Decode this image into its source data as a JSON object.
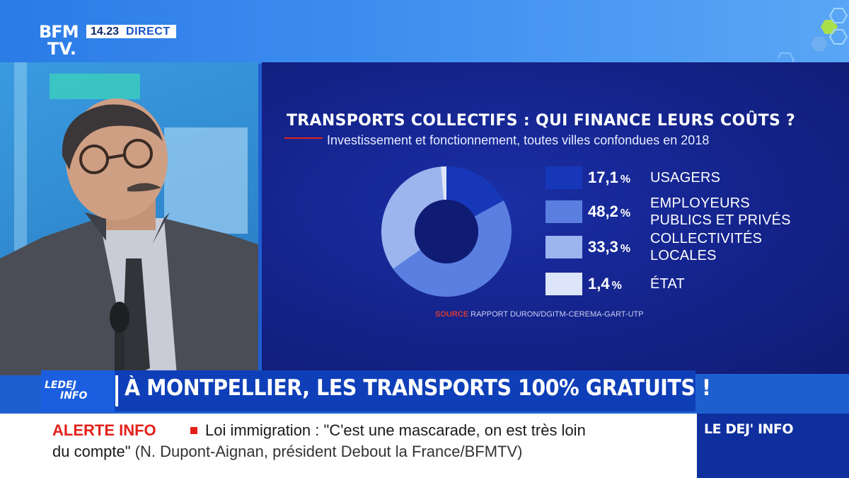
{
  "channel": {
    "logo_line1": "BFM",
    "logo_line2": "TV.",
    "time": "14.23",
    "live_label": "DIRECT"
  },
  "graphic": {
    "title": "TRANSPORTS COLLECTIFS : QUI FINANCE LEURS COÛTS ?",
    "subtitle": "Investissement et fonctionnement, toutes villes confondues en 2018",
    "source_key": "SOURCE",
    "source_text": "RAPPORT DURON/DGITM-CEREMA-GART-UTP"
  },
  "chart_data": {
    "type": "pie",
    "title": "TRANSPORTS COLLECTIFS : QUI FINANCE LEURS COÛTS ?",
    "subtitle": "Investissement et fonctionnement, toutes villes confondues en 2018",
    "unit": "%",
    "categories": [
      "USAGERS",
      "EMPLOYEURS PUBLICS ET PRIVÉS",
      "COLLECTIVITÉS LOCALES",
      "ÉTAT"
    ],
    "values": [
      17.1,
      48.2,
      33.3,
      1.4
    ],
    "value_labels": [
      "17,1",
      "48,2",
      "33,3",
      "1,4"
    ],
    "label_lines": [
      [
        "USAGERS"
      ],
      [
        "EMPLOYEURS",
        "PUBLICS ET PRIVÉS"
      ],
      [
        "COLLECTIVITÉS",
        "LOCALES"
      ],
      [
        "ÉTAT"
      ]
    ],
    "colors": [
      "#1638b8",
      "#5a7fe0",
      "#9db5ef",
      "#dde5fa"
    ],
    "legend_position": "right",
    "percent_sign": "%"
  },
  "headline": {
    "program_line1": "LEDEJ",
    "program_line2": "INFO",
    "text": "À MONTPELLIER, LES TRANSPORTS 100% GRATUITS !"
  },
  "alert": {
    "label": "ALERTE INFO",
    "line1": "Loi immigration : \"C'est une mascarade, on est très loin",
    "line2_quote": "du compte\"",
    "line2_attribution": "(N. Dupont-Aignan, président Debout la France/BFMTV)"
  },
  "program_box": {
    "label": "LE DEJ' INFO"
  },
  "palette": {
    "brand_blue": "#1553c8",
    "alert_red": "#e4201b",
    "panel_navy": "#14238a"
  }
}
